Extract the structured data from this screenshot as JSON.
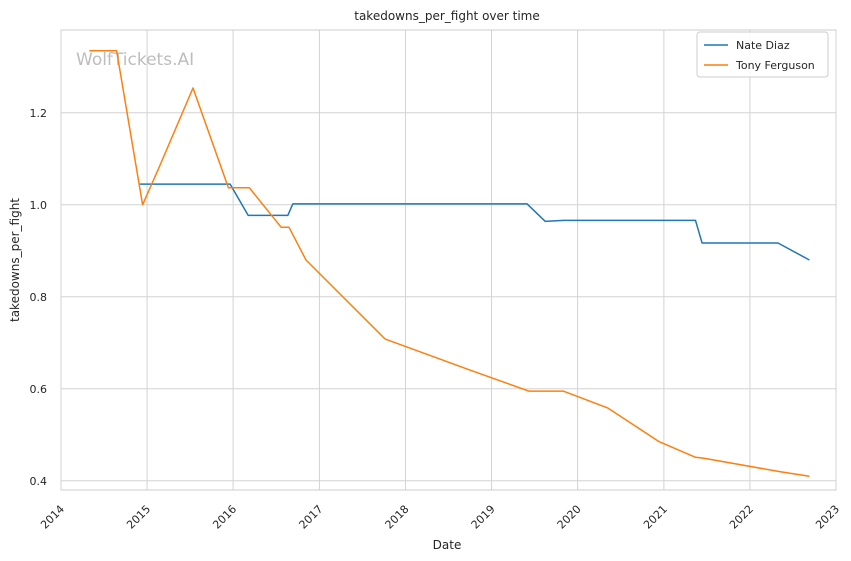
{
  "chart_data": {
    "type": "line",
    "title": "takedowns_per_fight over time",
    "xlabel": "Date",
    "ylabel": "takedowns_per_fight",
    "xlim": [
      "2014-01-01",
      "2023-01-01"
    ],
    "ylim": [
      0.38,
      1.38
    ],
    "x_ticks": [
      "2014",
      "2015",
      "2016",
      "2017",
      "2018",
      "2019",
      "2020",
      "2021",
      "2022",
      "2023"
    ],
    "y_ticks": [
      "0.4",
      "0.6",
      "0.8",
      "1.0",
      "1.2"
    ],
    "y_tick_values": [
      0.4,
      0.6,
      0.8,
      1.0,
      1.2
    ],
    "grid": true,
    "legend_position": "top-right",
    "watermark": "WolfTickets.AI",
    "series": [
      {
        "name": "Nate Diaz",
        "color": "#1f77b4",
        "points": [
          [
            "2014-12-01",
            1.045
          ],
          [
            "2015-12-19",
            1.045
          ],
          [
            "2016-03-05",
            0.977
          ],
          [
            "2016-08-20",
            0.977
          ],
          [
            "2016-09-10",
            1.002
          ],
          [
            "2019-06-01",
            1.002
          ],
          [
            "2019-08-17",
            0.964
          ],
          [
            "2019-11-02",
            0.966
          ],
          [
            "2021-05-15",
            0.966
          ],
          [
            "2021-06-12",
            0.917
          ],
          [
            "2022-04-30",
            0.917
          ],
          [
            "2022-09-10",
            0.88
          ]
        ]
      },
      {
        "name": "Tony Ferguson",
        "color": "#ff7f0e",
        "points": [
          [
            "2014-05-01",
            1.335
          ],
          [
            "2014-08-25",
            1.335
          ],
          [
            "2014-12-13",
            1.0
          ],
          [
            "2015-02-20",
            1.08
          ],
          [
            "2015-07-15",
            1.254
          ],
          [
            "2015-12-12",
            1.037
          ],
          [
            "2016-03-10",
            1.037
          ],
          [
            "2016-07-23",
            0.951
          ],
          [
            "2016-08-25",
            0.951
          ],
          [
            "2016-11-05",
            0.88
          ],
          [
            "2017-10-07",
            0.708
          ],
          [
            "2018-10-06",
            0.64
          ],
          [
            "2019-06-08",
            0.595
          ],
          [
            "2019-11-01",
            0.595
          ],
          [
            "2020-05-09",
            0.558
          ],
          [
            "2020-12-12",
            0.485
          ],
          [
            "2021-05-15",
            0.451
          ],
          [
            "2021-06-20",
            0.449
          ],
          [
            "2022-05-07",
            0.42
          ],
          [
            "2022-09-10",
            0.41
          ]
        ]
      }
    ]
  }
}
